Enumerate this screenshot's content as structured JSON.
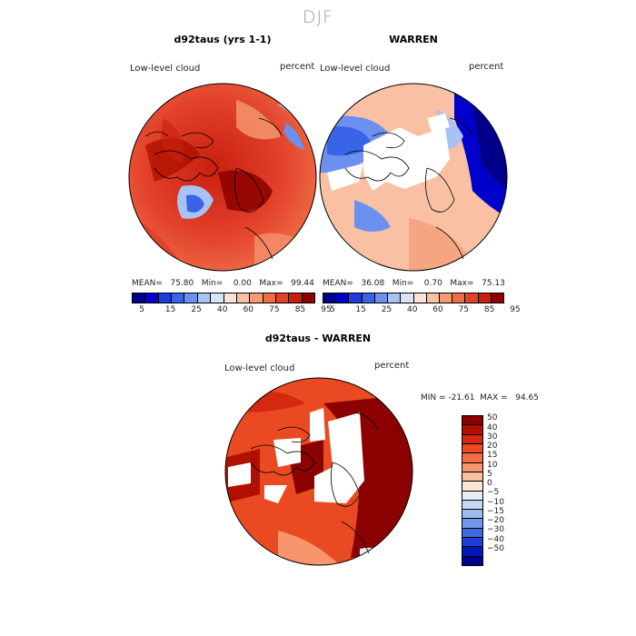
{
  "season": "DJF",
  "panels": {
    "model": {
      "title": "d92taus (yrs 1-1)",
      "variable": "Low-level cloud",
      "units": "percent",
      "stats": "MEAN=   75.80   Min=    0.00   Max=   99.44"
    },
    "obs": {
      "title": "WARREN",
      "variable": "Low-level cloud",
      "units": "percent",
      "stats": "MEAN=   36.08   Min=    0.70   Max=   75.13"
    },
    "diff": {
      "title": "d92taus - WARREN",
      "variable": "Low-level cloud",
      "units": "percent",
      "stats": "MIN = -21.61  MAX =   94.65"
    }
  },
  "abs_colorbar": {
    "colors": [
      "#00008b",
      "#0000cd",
      "#1e3cdc",
      "#3a64e8",
      "#6b90f0",
      "#a7c3f5",
      "#d6e6f7",
      "#fde3d5",
      "#f9c0a3",
      "#f59a73",
      "#ef6e48",
      "#e2412a",
      "#c8200f",
      "#8b0000"
    ],
    "labels": [
      "5",
      "15",
      "25",
      "40",
      "60",
      "75",
      "85",
      "95"
    ]
  },
  "diff_colorbar": {
    "colors": [
      "#8b0000",
      "#b01000",
      "#d42810",
      "#ea4a22",
      "#f26d45",
      "#f7966e",
      "#fbc0a3",
      "#fde5d6",
      "#e6eef8",
      "#c6daf3",
      "#9dbdf0",
      "#6e96ea",
      "#3f69df",
      "#1f3fd2",
      "#0018b8",
      "#000088"
    ],
    "labels": [
      "50",
      "40",
      "30",
      "20",
      "15",
      "10",
      "5",
      "0",
      "−5",
      "−10",
      "−15",
      "−20",
      "−30",
      "−40",
      "−50"
    ]
  }
}
